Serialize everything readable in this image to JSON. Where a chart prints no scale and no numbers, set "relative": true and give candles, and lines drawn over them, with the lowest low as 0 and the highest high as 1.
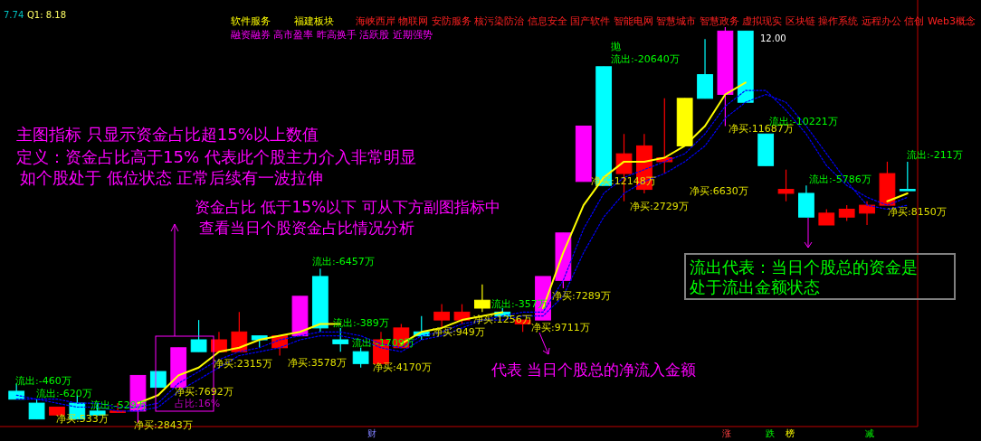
{
  "chart_data": {
    "type": "candlestick",
    "relative": true,
    "categories": [
      null,
      null,
      null,
      null,
      null,
      null,
      null,
      null,
      null,
      null,
      null,
      null,
      null,
      null,
      null,
      null,
      null,
      null,
      null,
      null,
      null,
      null,
      null,
      null,
      null,
      null,
      null,
      null,
      null,
      null,
      null,
      null,
      null,
      null,
      null,
      null,
      null,
      null,
      null,
      null,
      null,
      null,
      null,
      null,
      null
    ],
    "ohlc": [
      [
        0.08,
        0.1,
        0.06,
        0.06
      ],
      [
        0.05,
        0.06,
        0.01,
        0.01
      ],
      [
        0.02,
        0.04,
        0.02,
        0.04
      ],
      [
        0.05,
        0.07,
        0.01,
        0.01
      ],
      [
        0.03,
        0.05,
        0.02,
        0.02
      ],
      [
        0.03,
        0.05,
        0.03,
        0.03
      ],
      [
        0.03,
        0.12,
        0,
        0.12
      ],
      [
        0.13,
        0.13,
        0.09,
        0.09
      ],
      [
        0.09,
        0.19,
        0.09,
        0.19
      ],
      [
        0.21,
        0.26,
        0.18,
        0.18
      ],
      [
        0.18,
        0.23,
        0.18,
        0.21
      ],
      [
        0.18,
        0.28,
        0.18,
        0.23
      ],
      [
        0.22,
        0.22,
        0.19,
        0.21
      ],
      [
        0.19,
        0.22,
        0.17,
        0.22
      ],
      [
        0.22,
        0.32,
        0.22,
        0.32
      ],
      [
        0.37,
        0.39,
        0.23,
        0.24
      ],
      [
        0.21,
        0.24,
        0.18,
        0.2
      ],
      [
        0.18,
        0.19,
        0.14,
        0.15
      ],
      [
        0.15,
        0.23,
        0.15,
        0.21
      ],
      [
        0.19,
        0.25,
        0.19,
        0.24
      ],
      [
        0.23,
        0.27,
        0.21,
        0.22
      ],
      [
        0.26,
        0.3,
        0.24,
        0.28
      ],
      [
        0.26,
        0.3,
        0.25,
        0.28
      ],
      [
        0.29,
        0.35,
        0.28,
        0.31
      ],
      [
        0.28,
        0.29,
        0.27,
        0.27
      ],
      [
        0.25,
        0.26,
        0.23,
        0.26
      ],
      [
        0.26,
        0.37,
        0.26,
        0.37
      ],
      [
        0.36,
        0.48,
        0.34,
        0.48
      ],
      [
        0.61,
        0.75,
        0.61,
        0.75
      ],
      [
        0.9,
        0.9,
        0.6,
        0.6
      ],
      [
        0.63,
        0.73,
        0.56,
        0.68
      ],
      [
        0.59,
        0.73,
        0.58,
        0.7
      ],
      [
        0.66,
        0.82,
        0.63,
        0.67
      ],
      [
        0.7,
        0.82,
        0.7,
        0.82
      ],
      [
        0.88,
        0.97,
        0.82,
        0.82
      ],
      [
        0.83,
        1,
        0.75,
        0.99
      ],
      [
        0.99,
        0.99,
        0.81,
        0.81
      ],
      [
        0.73,
        0.73,
        0.65,
        0.65
      ],
      [
        0.58,
        0.64,
        0.56,
        0.59
      ],
      [
        0.58,
        0.6,
        0.52,
        0.52
      ],
      [
        0.5,
        0.54,
        0.5,
        0.53
      ],
      [
        0.52,
        0.55,
        0.51,
        0.54
      ],
      [
        0.53,
        0.56,
        0.5,
        0.55
      ],
      [
        0.55,
        0.66,
        0.55,
        0.63
      ],
      [
        0.59,
        0.66,
        0.59,
        0.59
      ]
    ],
    "colors": [
      "#00ffff",
      "#00ffff",
      "#ff0000",
      "#00ffff",
      "#00ffff",
      "#ff0000",
      "#ff00ff",
      "#00ffff",
      "#ff00ff",
      "#00ffff",
      "#ff0000",
      "#ff0000",
      "#00ffff",
      "#ff0000",
      "#ff00ff",
      "#00ffff",
      "#00ffff",
      "#00ffff",
      "#ff0000",
      "#ff0000",
      "#00ffff",
      "#ff0000",
      "#ff0000",
      "#ffff00",
      "#00ffff",
      "#ff0000",
      "#ff00ff",
      "#ff00ff",
      "#ff00ff",
      "#00ffff",
      "#ff0000",
      "#ff0000",
      "#ff0000",
      "#ffff00",
      "#00ffff",
      "#ff00ff",
      "#00ffff",
      "#00ffff",
      "#ff0000",
      "#00ffff",
      "#ff0000",
      "#ff0000",
      "#ff0000",
      "#ff0000",
      "#00ffff"
    ],
    "series": [
      {
        "type": "line",
        "color": "#0000ff",
        "line_style": "dotted",
        "values": [
          0.07,
          0.06,
          0.06,
          0.05,
          0.05,
          0.04,
          0.04,
          0.05,
          0.1,
          0.13,
          0.16,
          0.18,
          0.19,
          0.21,
          0.22,
          0.23,
          0.23,
          0.22,
          0.2,
          0.19,
          0.22,
          0.23,
          0.25,
          0.26,
          0.27,
          0.28,
          0.28,
          0.36,
          0.49,
          0.58,
          0.62,
          0.64,
          0.66,
          0.68,
          0.73,
          0.8,
          0.84,
          0.84,
          0.79,
          0.73,
          0.65,
          0.6,
          0.57,
          0.55,
          0.57
        ]
      },
      {
        "type": "line",
        "color": "#0000ff",
        "line_style": "dotted",
        "values": [
          0.06,
          0.06,
          0.05,
          0.04,
          0.04,
          0.03,
          0.03,
          0.04,
          0.08,
          0.11,
          0.14,
          0.17,
          0.18,
          0.19,
          0.21,
          0.22,
          0.22,
          0.21,
          0.19,
          0.18,
          0.21,
          0.22,
          0.24,
          0.26,
          0.26,
          0.27,
          0.27,
          0.32,
          0.43,
          0.52,
          0.58,
          0.61,
          0.63,
          0.66,
          0.7,
          0.77,
          0.81,
          0.83,
          0.81,
          0.75,
          0.68,
          0.61,
          0.55,
          0.54,
          0.55
        ]
      },
      {
        "type": "line",
        "color": "#ffff00",
        "line_style": "solid",
        "values": [
          null,
          null,
          null,
          null,
          null,
          null,
          0.05,
          0.07,
          0.12,
          0.14,
          0.18,
          0.19,
          0.21,
          0.22,
          0.23,
          0.25,
          0.25,
          null,
          null,
          0.2,
          0.23,
          0.24,
          0.26,
          0.27,
          0.28,
          null,
          0.29,
          0.43,
          0.55,
          0.62,
          0.66,
          0.66,
          0.67,
          0.7,
          0.75,
          0.83,
          0.86,
          null,
          null,
          null,
          null,
          null,
          null,
          0.56,
          0.58
        ]
      }
    ],
    "annotations": [
      "7.74",
      "Q1: 8.18",
      "软件服务",
      "福建板块",
      "海峡西岸 物联网 安防服务 核污染防治 信息安全 国产软件 智能电网 智慧城市 智慧政务 虚拟现实 区块链 操作系统 远程办公 信创 Web3概念",
      "融资融券 高市盈率 昨高换手 活跃股 近期强势",
      "12.00",
      "主图指标 只显示资金占比超15%以上数值",
      "定义：资金占比高于15% 代表此个股主力介入非常明显",
      "如个股处于 低位状态 正常后续有一波拉伸",
      "资金占比 低于15%以下   可从下方副图指标中",
      "查看当日个股资金占比情况分析",
      "代表 当日个股总的净流入金额",
      "流出代表：当日个股总的资金是",
      "处于流出金额状态",
      "流出:-460万",
      "流出:-620万",
      "流出:-529万",
      "净买:533万",
      "净买:2843万",
      "净买:7692万",
      "占比:16%",
      "净买:2315万",
      "净买:3578万",
      "流出:-6457万",
      "流出:-389万",
      "流出:-1709万",
      "净买:4170万",
      "净买:949万",
      "流出:-357万",
      "净买:1256万",
      "净买:9711万",
      "净买:7289万",
      "抛",
      "流出:-20640万",
      "净买:12148万",
      "净买:2729万",
      "净买:6630万",
      "净买:11687万",
      "流出:-10221万",
      "流出:-5786万",
      "流出:-211万",
      "净买:8150万",
      "财",
      "涨",
      "跌",
      "榜",
      "减"
    ]
  }
}
